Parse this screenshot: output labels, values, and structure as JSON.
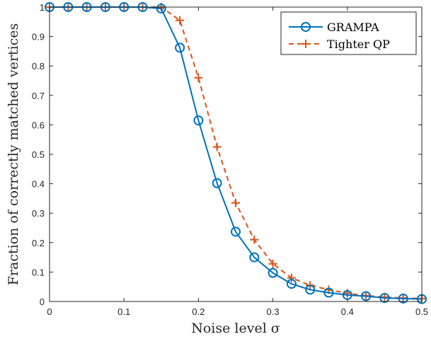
{
  "chart_data": {
    "type": "line",
    "title": "",
    "xlabel": "Noise level σ",
    "ylabel": "Fraction of correctly matched vertices",
    "xlim": [
      0,
      0.5
    ],
    "ylim": [
      0,
      1
    ],
    "x_ticks": [
      "0",
      "0.1",
      "0.2",
      "0.3",
      "0.4",
      "0.5"
    ],
    "y_ticks": [
      "0",
      "0.1",
      "0.2",
      "0.3",
      "0.4",
      "0.5",
      "0.6",
      "0.7",
      "0.8",
      "0.9",
      "1"
    ],
    "grid": false,
    "legend_position": "top-right",
    "x": [
      0,
      0.025,
      0.05,
      0.075,
      0.1,
      0.125,
      0.15,
      0.175,
      0.2,
      0.225,
      0.25,
      0.275,
      0.3,
      0.325,
      0.35,
      0.375,
      0.4,
      0.425,
      0.45,
      0.475,
      0.5
    ],
    "series": [
      {
        "name": "GRAMPA",
        "color": "#0072BD",
        "line_style": "solid",
        "marker": "circle",
        "values": [
          1,
          1,
          1,
          1,
          1,
          1,
          0.995,
          0.862,
          0.615,
          0.402,
          0.237,
          0.15,
          0.097,
          0.06,
          0.04,
          0.03,
          0.022,
          0.018,
          0.012,
          0.01,
          0.008
        ]
      },
      {
        "name": "Tighter QP",
        "color": "#D95319",
        "line_style": "dashed",
        "marker": "plus",
        "values": [
          1,
          1,
          1,
          1,
          1,
          1,
          1,
          0.955,
          0.76,
          0.525,
          0.335,
          0.21,
          0.128,
          0.08,
          0.055,
          0.04,
          0.028,
          0.02,
          0.015,
          0.012,
          0.01
        ]
      }
    ]
  }
}
